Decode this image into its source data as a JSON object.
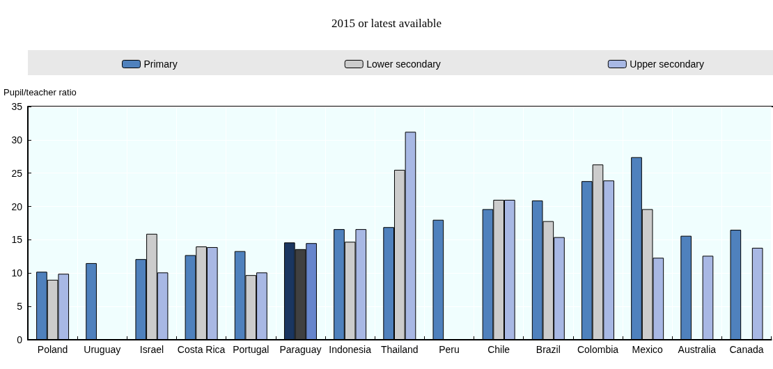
{
  "chart_data": {
    "type": "bar",
    "title": "2015 or latest available",
    "ylabel": "Pupil/teacher ratio",
    "categories": [
      "Poland",
      "Uruguay",
      "Israel",
      "Costa Rica",
      "Portugal",
      "Paraguay",
      "Indonesia",
      "Thailand",
      "Peru",
      "Chile",
      "Brazil",
      "Colombia",
      "Mexico",
      "Australia",
      "Canada"
    ],
    "series": [
      {
        "name": "Primary",
        "color": "#4f81bd",
        "colors": [
          "#4f81bd",
          "#4f81bd",
          "#4f81bd",
          "#4f81bd",
          "#4f81bd",
          "#1a3660",
          "#4f81bd",
          "#4f81bd",
          "#4f81bd",
          "#4f81bd",
          "#4f81bd",
          "#4f81bd",
          "#4f81bd",
          "#4f81bd",
          "#4f81bd"
        ],
        "values": [
          10.2,
          11.5,
          12.1,
          12.7,
          13.3,
          14.6,
          16.6,
          16.9,
          18.0,
          19.6,
          20.9,
          23.8,
          27.4,
          15.6,
          16.5
        ]
      },
      {
        "name": "Lower secondary",
        "color": "#cccccc",
        "colors": [
          "#cccccc",
          "#cccccc",
          "#cccccc",
          "#cccccc",
          "#cccccc",
          "#404040",
          "#cccccc",
          "#cccccc",
          "#cccccc",
          "#cccccc",
          "#cccccc",
          "#cccccc",
          "#cccccc",
          "#cccccc",
          "#cccccc"
        ],
        "values": [
          9.0,
          null,
          15.9,
          14.0,
          9.7,
          13.6,
          14.7,
          25.5,
          null,
          21.0,
          17.8,
          26.3,
          19.6,
          null,
          null
        ]
      },
      {
        "name": "Upper secondary",
        "color": "#a8b8e4",
        "colors": [
          "#a8b8e4",
          "#a8b8e4",
          "#a8b8e4",
          "#a8b8e4",
          "#a8b8e4",
          "#6685cc",
          "#a8b8e4",
          "#a8b8e4",
          "#a8b8e4",
          "#a8b8e4",
          "#a8b8e4",
          "#a8b8e4",
          "#a8b8e4",
          "#a8b8e4",
          "#a8b8e4"
        ],
        "values": [
          9.9,
          null,
          10.1,
          13.9,
          10.1,
          14.5,
          16.6,
          31.2,
          null,
          21.0,
          15.4,
          23.9,
          12.3,
          12.6,
          13.8
        ]
      }
    ],
    "ylim": [
      0,
      35
    ],
    "yticks": [
      0,
      5,
      10,
      15,
      20,
      25,
      30,
      35
    ],
    "grid": true,
    "legend": "top"
  }
}
